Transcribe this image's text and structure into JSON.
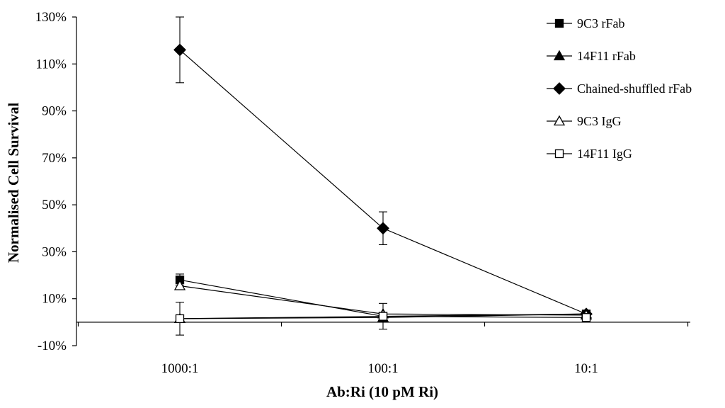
{
  "chart_data": {
    "type": "line",
    "title": "",
    "xlabel": "Ab:Ri (10 pM Ri)",
    "ylabel": "Normalised Cell Survival",
    "categories": [
      "1000:1",
      "100:1",
      "10:1"
    ],
    "ylim": [
      -10,
      130
    ],
    "yticks": [
      -10,
      10,
      30,
      50,
      70,
      90,
      110,
      130
    ],
    "ytick_labels": [
      "-10%",
      "10%",
      "30%",
      "50%",
      "70%",
      "90%",
      "110%",
      "130%"
    ],
    "grid": false,
    "legend_position": "top-right",
    "series": [
      {
        "name": "9C3 rFab",
        "marker": "square",
        "filled": true,
        "values": [
          18,
          2.5,
          3.5
        ],
        "errors": [
          2.5,
          0,
          0
        ]
      },
      {
        "name": "14F11 rFab",
        "marker": "triangle",
        "filled": true,
        "values": [
          1.5,
          2,
          3.5
        ],
        "errors": [
          0,
          0,
          0
        ]
      },
      {
        "name": "Chained-shuffled rFab",
        "marker": "diamond",
        "filled": true,
        "values": [
          116,
          40,
          3.5
        ],
        "errors": [
          14,
          7,
          0
        ]
      },
      {
        "name": "9C3 IgG",
        "marker": "triangle",
        "filled": false,
        "values": [
          15.5,
          3.5,
          3
        ],
        "errors": [
          0,
          0,
          0
        ]
      },
      {
        "name": "14F11 IgG",
        "marker": "square",
        "filled": false,
        "values": [
          1.5,
          2.5,
          2
        ],
        "errors": [
          7,
          5.5,
          0
        ]
      }
    ]
  }
}
